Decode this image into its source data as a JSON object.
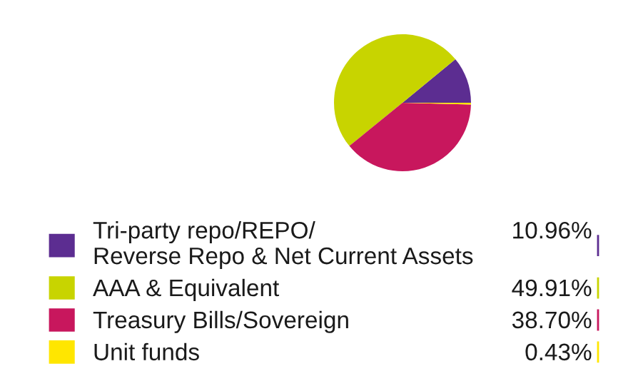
{
  "chart_data": {
    "type": "pie",
    "categories": [
      "Tri-party repo/REPO/\nReverse Repo & Net Current Assets",
      "AAA & Equivalent",
      "Treasury Bills/Sovereign",
      "Unit funds"
    ],
    "values": [
      10.96,
      49.91,
      38.7,
      0.43
    ],
    "value_labels": [
      "10.96%",
      "49.91%",
      "38.70%",
      "0.43%"
    ],
    "colors": [
      "#5c2d91",
      "#c8d400",
      "#c8175d",
      "#ffe600"
    ],
    "legend": "bottom"
  }
}
